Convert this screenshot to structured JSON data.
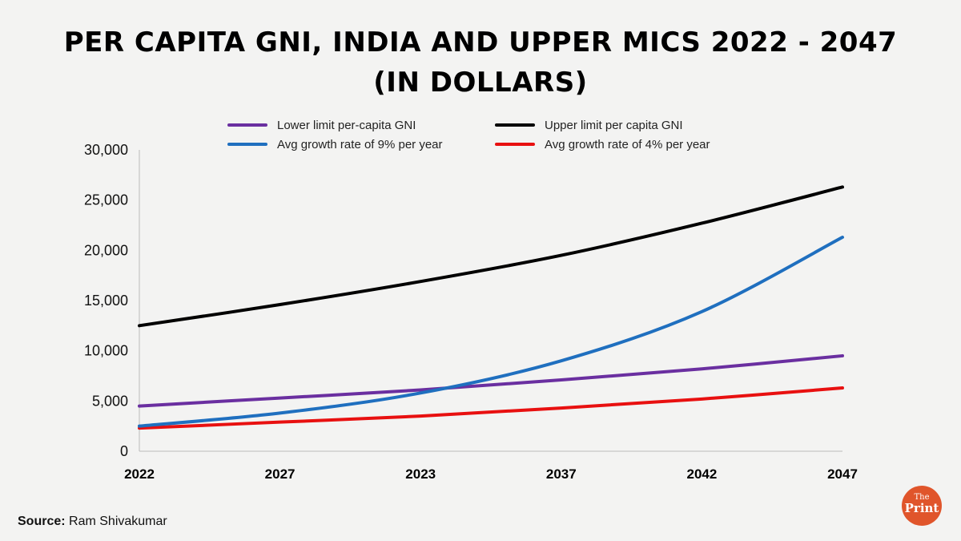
{
  "chart_data": {
    "type": "line",
    "title_line1": "PER CAPITA GNI, INDIA AND UPPER MICS 2022 - 2047",
    "title_line2": "(IN DOLLARS)",
    "categories": [
      "2022",
      "2027",
      "2023",
      "2037",
      "2042",
      "2047"
    ],
    "yticks": [
      "30,000",
      "25,000",
      "20,000",
      "15,000",
      "10,000",
      "5,000",
      "0"
    ],
    "ylim": [
      0,
      30000
    ],
    "series": [
      {
        "name": "Lower limit per-capita GNI",
        "color": "#6a2fa0",
        "values": [
          4500,
          5300,
          6100,
          7100,
          8200,
          9500
        ]
      },
      {
        "name": "Upper limit per capita GNI",
        "color": "#000000",
        "values": [
          12500,
          14600,
          16900,
          19500,
          22700,
          26300
        ]
      },
      {
        "name": "Avg growth rate of 9% per year",
        "color": "#1f6fbf",
        "values": [
          2500,
          3800,
          5800,
          9000,
          13900,
          21300
        ]
      },
      {
        "name": "Avg growth rate of 4% per year",
        "color": "#e81010",
        "values": [
          2300,
          2900,
          3500,
          4300,
          5200,
          6300
        ]
      }
    ]
  },
  "footer": {
    "source_label": "Source:",
    "source_value": "Ram Shivakumar"
  },
  "logo": {
    "the": "The",
    "print": "Print"
  }
}
